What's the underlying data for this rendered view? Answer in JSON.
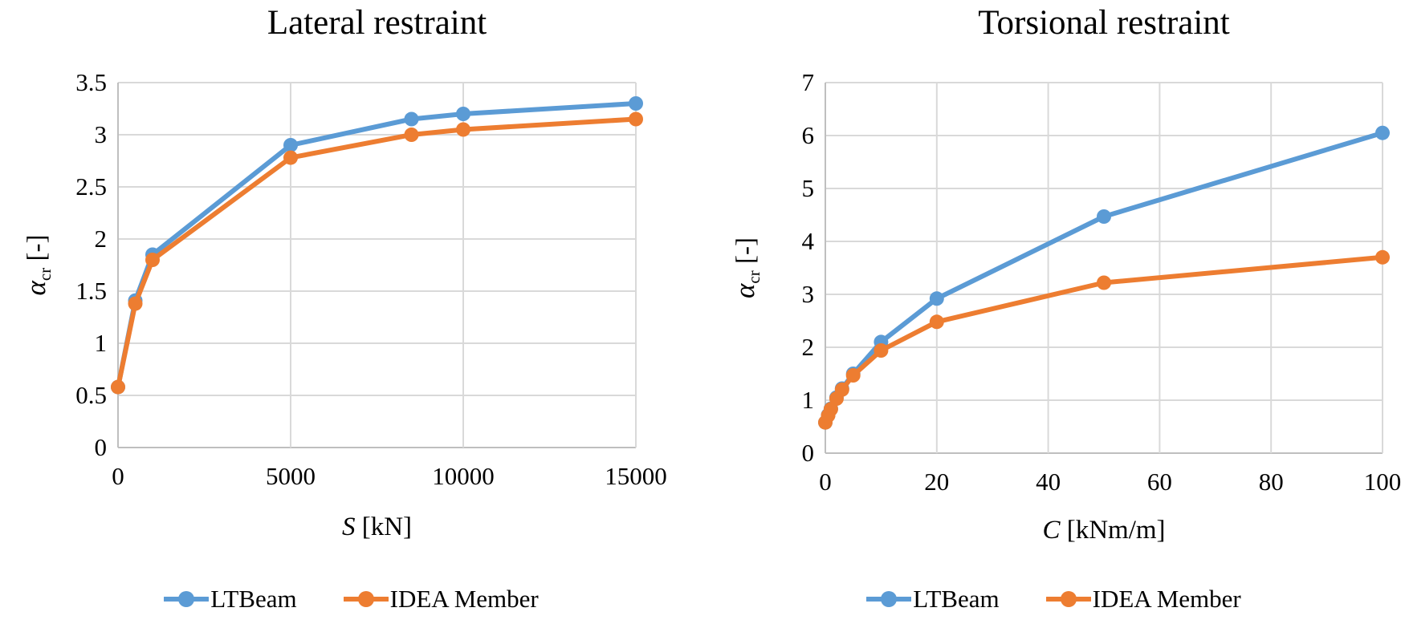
{
  "chart_data": [
    {
      "type": "line",
      "title": "Lateral restraint",
      "x_label": {
        "variable": "S",
        "unit": " [kN]"
      },
      "y_label": {
        "variable": "α",
        "subscript": "cr",
        "unit": " [-]"
      },
      "x_range": [
        0,
        15000
      ],
      "y_range": [
        0,
        3.5
      ],
      "x_ticks": [
        0,
        5000,
        10000,
        15000
      ],
      "y_ticks": [
        0,
        0.5,
        1,
        1.5,
        2,
        2.5,
        3,
        3.5
      ],
      "grid": true,
      "legend_position": "bottom",
      "x": [
        0,
        500,
        1000,
        5000,
        8500,
        10000,
        15000
      ],
      "series": [
        {
          "name": "LTBeam",
          "color": "#5B9BD5",
          "values": [
            0.58,
            1.41,
            1.85,
            2.9,
            3.15,
            3.2,
            3.3
          ]
        },
        {
          "name": "IDEA Member",
          "color": "#ED7D31",
          "values": [
            0.58,
            1.38,
            1.8,
            2.78,
            3.0,
            3.05,
            3.15
          ]
        }
      ]
    },
    {
      "type": "line",
      "title": "Torsional restraint",
      "x_label": {
        "variable": "C",
        "unit": " [kNm/m]"
      },
      "y_label": {
        "variable": "α",
        "subscript": "cr",
        "unit": " [-]"
      },
      "x_range": [
        0,
        100
      ],
      "y_range": [
        0,
        7
      ],
      "x_ticks": [
        0,
        20,
        40,
        60,
        80,
        100
      ],
      "y_ticks": [
        0,
        1,
        2,
        3,
        4,
        5,
        6,
        7
      ],
      "grid": true,
      "legend_position": "bottom",
      "x": [
        0,
        0.5,
        1,
        2,
        3,
        5,
        10,
        20,
        50,
        100
      ],
      "series": [
        {
          "name": "LTBeam",
          "color": "#5B9BD5",
          "values": [
            0.58,
            0.72,
            0.84,
            1.05,
            1.22,
            1.5,
            2.1,
            2.92,
            4.47,
            6.05
          ]
        },
        {
          "name": "IDEA Member",
          "color": "#ED7D31",
          "values": [
            0.58,
            0.71,
            0.83,
            1.03,
            1.2,
            1.47,
            1.94,
            2.48,
            3.22,
            3.7
          ]
        }
      ]
    }
  ],
  "legend_labels": [
    "LTBeam",
    "IDEA Member"
  ],
  "colors": {
    "series_blue": "#5B9BD5",
    "series_orange": "#ED7D31",
    "gridline": "#D9D9D9",
    "axis_line": "#BFBFBF",
    "text": "#000000"
  }
}
